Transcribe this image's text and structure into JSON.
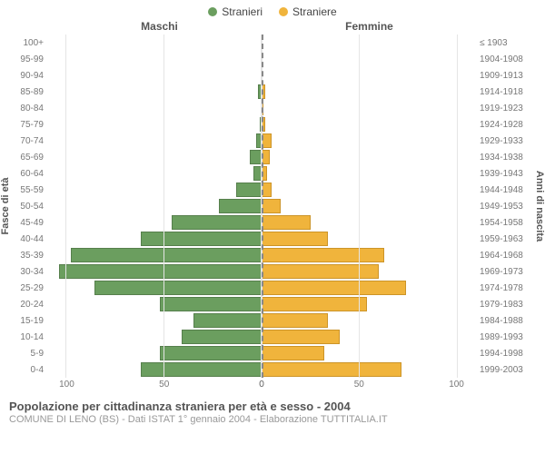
{
  "legend": {
    "male": {
      "label": "Stranieri",
      "color": "#6b9e5f"
    },
    "female": {
      "label": "Straniere",
      "color": "#f0b43c"
    }
  },
  "headers": {
    "left": "Maschi",
    "right": "Femmine"
  },
  "ylabels": {
    "left": "Fasce di età",
    "right": "Anni di nascita"
  },
  "chart": {
    "type": "population-pyramid",
    "x_max": 110,
    "x_ticks": [
      0,
      50,
      100
    ],
    "background_color": "#ffffff",
    "grid_color": "#e5e5e5",
    "bar_border_male": "#567f4c",
    "bar_border_female": "#cc9428",
    "rows": [
      {
        "age": "100+",
        "birth": "≤ 1903",
        "m": 0,
        "f": 0
      },
      {
        "age": "95-99",
        "birth": "1904-1908",
        "m": 0,
        "f": 0
      },
      {
        "age": "90-94",
        "birth": "1909-1913",
        "m": 0,
        "f": 0
      },
      {
        "age": "85-89",
        "birth": "1914-1918",
        "m": 2,
        "f": 2
      },
      {
        "age": "80-84",
        "birth": "1919-1923",
        "m": 0,
        "f": 1
      },
      {
        "age": "75-79",
        "birth": "1924-1928",
        "m": 1,
        "f": 2
      },
      {
        "age": "70-74",
        "birth": "1929-1933",
        "m": 3,
        "f": 5
      },
      {
        "age": "65-69",
        "birth": "1934-1938",
        "m": 6,
        "f": 4
      },
      {
        "age": "60-64",
        "birth": "1939-1943",
        "m": 4,
        "f": 3
      },
      {
        "age": "55-59",
        "birth": "1944-1948",
        "m": 13,
        "f": 5
      },
      {
        "age": "50-54",
        "birth": "1949-1953",
        "m": 22,
        "f": 10
      },
      {
        "age": "45-49",
        "birth": "1954-1958",
        "m": 46,
        "f": 25
      },
      {
        "age": "40-44",
        "birth": "1959-1963",
        "m": 62,
        "f": 34
      },
      {
        "age": "35-39",
        "birth": "1964-1968",
        "m": 98,
        "f": 63
      },
      {
        "age": "30-34",
        "birth": "1969-1973",
        "m": 104,
        "f": 60
      },
      {
        "age": "25-29",
        "birth": "1974-1978",
        "m": 86,
        "f": 74
      },
      {
        "age": "20-24",
        "birth": "1979-1983",
        "m": 52,
        "f": 54
      },
      {
        "age": "15-19",
        "birth": "1984-1988",
        "m": 35,
        "f": 34
      },
      {
        "age": "10-14",
        "birth": "1989-1993",
        "m": 41,
        "f": 40
      },
      {
        "age": "5-9",
        "birth": "1994-1998",
        "m": 52,
        "f": 32
      },
      {
        "age": "0-4",
        "birth": "1999-2003",
        "m": 62,
        "f": 72
      }
    ]
  },
  "footer": {
    "title": "Popolazione per cittadinanza straniera per età e sesso - 2004",
    "subtitle": "COMUNE DI LENO (BS) - Dati ISTAT 1° gennaio 2004 - Elaborazione TUTTITALIA.IT"
  }
}
